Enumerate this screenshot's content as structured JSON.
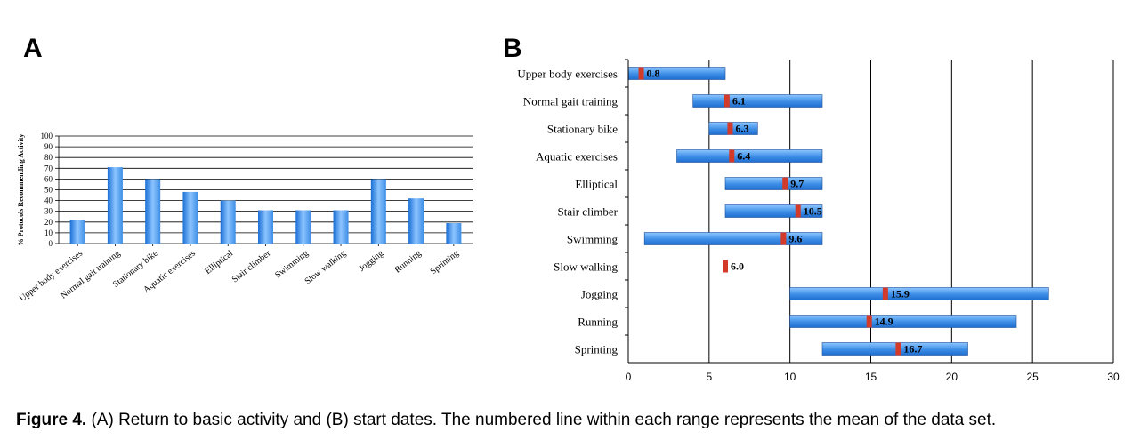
{
  "panel_a_letter": "A",
  "panel_b_letter": "B",
  "caption": {
    "label": "Figure 4.",
    "text": " (A) Return to basic activity and (B) start dates. The numbered line within each range represents the mean of the data set."
  },
  "chart_data": [
    {
      "type": "bar",
      "panel": "A",
      "ylabel": "% Protocols Recommending Activity",
      "xlabel": "",
      "ylim": [
        0,
        100
      ],
      "yticks": [
        0,
        10,
        20,
        30,
        40,
        50,
        60,
        70,
        80,
        90,
        100
      ],
      "categories": [
        "Upper body exercises",
        "Normal gait training",
        "Stationary bike",
        "Aquatic exercises",
        "Elliptical",
        "Stair climber",
        "Swimming",
        "Slow walking",
        "Jogging",
        "Running",
        "Sprinting"
      ],
      "values": [
        22,
        71,
        60,
        48,
        40,
        31,
        31,
        31,
        60,
        42,
        19
      ],
      "bar_color": "#3d8ee6",
      "grid": true
    },
    {
      "type": "range-bar",
      "panel": "B",
      "xlim": [
        0,
        30
      ],
      "xticks": [
        0,
        5,
        10,
        15,
        20,
        25,
        30
      ],
      "grid": true,
      "categories": [
        "Upper body exercises",
        "Normal gait training",
        "Stationary bike",
        "Aquatic exercises",
        "Elliptical",
        "Stair climber",
        "Swimming",
        "Slow walking",
        "Jogging",
        "Running",
        "Sprinting"
      ],
      "ranges": [
        [
          0,
          6
        ],
        [
          4,
          12
        ],
        [
          5,
          8
        ],
        [
          3,
          12
        ],
        [
          6,
          12
        ],
        [
          6,
          12
        ],
        [
          1,
          12
        ],
        [
          6,
          6
        ],
        [
          10,
          26
        ],
        [
          10,
          24
        ],
        [
          12,
          21
        ]
      ],
      "means": [
        0.8,
        6.1,
        6.3,
        6.4,
        9.7,
        10.5,
        9.6,
        6.0,
        15.9,
        14.9,
        16.7
      ],
      "mean_labels": [
        "0.8",
        "6.1",
        "6.3",
        "6.4",
        "9.7",
        "10.5",
        "9.6",
        "6.0",
        "15.9",
        "14.9",
        "16.7"
      ],
      "range_color": "#3d8ee6",
      "mean_color": "#d23a2a"
    }
  ]
}
